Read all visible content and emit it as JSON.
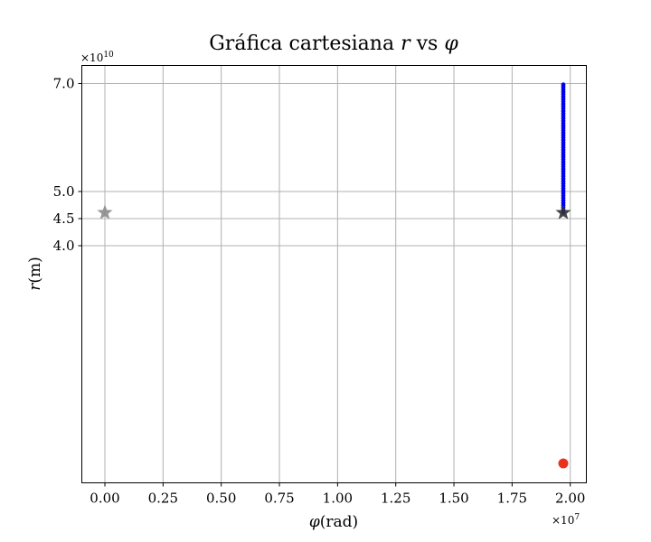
{
  "chart_data": {
    "type": "scatter",
    "title_prefix": "Gráfica cartesiana",
    "title_r": "r",
    "title_mid": "vs",
    "title_phi": "φ",
    "xlabel_symbol": "φ",
    "xlabel_unit": "(rad)",
    "ylabel_symbol": "r",
    "ylabel_unit": "(m)",
    "x_multiplier_base": "×10",
    "x_multiplier_exp": "7",
    "y_multiplier_base": "×10",
    "y_multiplier_exp": "10",
    "x_scale_factor": 10000000,
    "y_scale_factor": 10000000000,
    "xlim": [
      -0.1,
      2.05
    ],
    "ylim": [
      0.35,
      7.35
    ],
    "y_scale": "nonlinear (r axis, labelled ticks 4.0–7.0 only)",
    "grid": true,
    "x_ticks": [
      "0.00",
      "0.25",
      "0.50",
      "0.75",
      "1.00",
      "1.25",
      "1.50",
      "1.75",
      "2.00"
    ],
    "x_tick_values": [
      0.0,
      0.25,
      0.5,
      0.75,
      1.0,
      1.25,
      1.5,
      1.75,
      2.0
    ],
    "y_ticks": [
      "7.0",
      "5.0",
      "4.5",
      "4.0"
    ],
    "y_tick_values": [
      7.0,
      5.0,
      4.5,
      4.0
    ],
    "series": [
      {
        "marker": "circle",
        "color": "#0000ee",
        "x": 1.97,
        "y_from": 4.61,
        "y_to": 6.98,
        "count": 54
      }
    ],
    "markers": [
      {
        "shape": "star",
        "color": "#8c8c8c",
        "x": 0.0,
        "y": 4.61
      },
      {
        "shape": "star",
        "color": "#333333",
        "x": 1.97,
        "y": 4.61
      },
      {
        "shape": "circle",
        "color": "#e8321e",
        "x": 1.97,
        "y": 0.38
      }
    ]
  }
}
